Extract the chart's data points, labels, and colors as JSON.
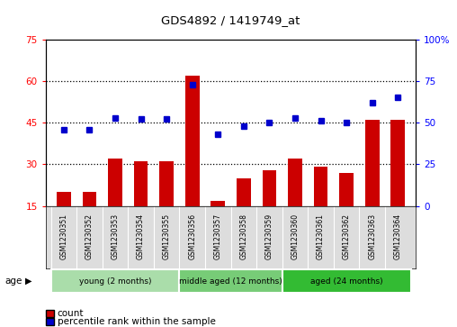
{
  "title": "GDS4892 / 1419749_at",
  "samples": [
    "GSM1230351",
    "GSM1230352",
    "GSM1230353",
    "GSM1230354",
    "GSM1230355",
    "GSM1230356",
    "GSM1230357",
    "GSM1230358",
    "GSM1230359",
    "GSM1230360",
    "GSM1230361",
    "GSM1230362",
    "GSM1230363",
    "GSM1230364"
  ],
  "counts": [
    20,
    20,
    32,
    31,
    31,
    62,
    17,
    25,
    28,
    32,
    29,
    27,
    46,
    46
  ],
  "percentile_ranks": [
    46,
    46,
    53,
    52,
    52,
    73,
    43,
    48,
    50,
    53,
    51,
    50,
    62,
    65
  ],
  "groups": [
    {
      "label": "young (2 months)",
      "start": 0,
      "end": 5,
      "color": "#aaddaa"
    },
    {
      "label": "middle aged (12 months)",
      "start": 5,
      "end": 9,
      "color": "#77cc77"
    },
    {
      "label": "aged (24 months)",
      "start": 9,
      "end": 14,
      "color": "#33bb33"
    }
  ],
  "ylim_left": [
    15,
    75
  ],
  "ylim_right": [
    0,
    100
  ],
  "yticks_left": [
    15,
    30,
    45,
    60,
    75
  ],
  "yticks_right": [
    0,
    25,
    50,
    75,
    100
  ],
  "bar_color": "#CC0000",
  "dot_color": "#0000CC",
  "bar_width": 0.55,
  "dotted_lines": [
    30,
    45,
    60
  ],
  "age_label": "age"
}
